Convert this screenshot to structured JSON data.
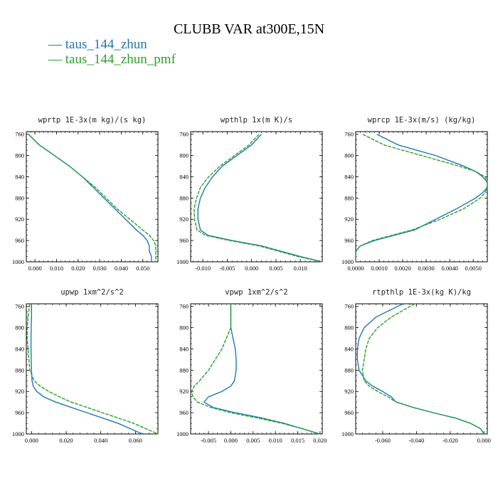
{
  "title": "CLUBB VAR at300E,15N",
  "legend": [
    {
      "label": "taus_144_zhun",
      "color": "#1f77b4",
      "dash": false
    },
    {
      "label": "taus_144_zhun_pmf",
      "color": "#2ca02c",
      "dash": true
    }
  ],
  "chart_data": [
    {
      "type": "line",
      "title": "wprtp  1E-3x(m kg)/(s kg)",
      "ylim": [
        1000,
        755
      ],
      "yticks": [
        760,
        800,
        840,
        880,
        920,
        960,
        1000
      ],
      "xlim": [
        -0.004,
        0.057
      ],
      "xticks": [
        0.0,
        0.01,
        0.02,
        0.03,
        0.04,
        0.05
      ],
      "xtick_labels": [
        "0.000",
        "0.010",
        "0.020",
        "0.030",
        "0.040",
        "0.050"
      ],
      "series": [
        {
          "name": "taus_144_zhun",
          "y": [
            760,
            780,
            800,
            820,
            840,
            860,
            880,
            900,
            920,
            940,
            950,
            960,
            970,
            980,
            990,
            1000
          ],
          "x": [
            -0.003,
            0.002,
            0.009,
            0.016,
            0.022,
            0.027,
            0.032,
            0.037,
            0.042,
            0.047,
            0.05,
            0.052,
            0.053,
            0.053,
            0.054,
            0.054
          ]
        },
        {
          "name": "taus_144_zhun_pmf",
          "y": [
            760,
            780,
            800,
            820,
            840,
            860,
            880,
            900,
            920,
            940,
            950,
            960,
            970,
            980,
            990,
            1000
          ],
          "x": [
            -0.003,
            0.002,
            0.009,
            0.016,
            0.022,
            0.028,
            0.033,
            0.038,
            0.044,
            0.05,
            0.053,
            0.055,
            0.056,
            0.056,
            0.056,
            0.056
          ]
        }
      ]
    },
    {
      "type": "line",
      "title": "wpthlp  1x(m K)/s",
      "ylim": [
        1000,
        755
      ],
      "yticks": [
        760,
        800,
        840,
        880,
        920,
        960,
        1000
      ],
      "xlim": [
        -0.0125,
        0.0145
      ],
      "xticks": [
        -0.01,
        -0.005,
        0.0,
        0.005,
        0.01
      ],
      "xtick_labels": [
        "-0.010",
        "-0.005",
        "0.000",
        "0.005",
        "0.010"
      ],
      "series": [
        {
          "name": "taus_144_zhun",
          "y": [
            760,
            780,
            800,
            820,
            840,
            860,
            880,
            900,
            920,
            940,
            950,
            960,
            970,
            980,
            990,
            1000
          ],
          "x": [
            0.002,
            0.0,
            -0.003,
            -0.006,
            -0.008,
            -0.0095,
            -0.0105,
            -0.011,
            -0.011,
            -0.0105,
            -0.009,
            -0.004,
            0.002,
            0.006,
            0.01,
            0.0145
          ]
        },
        {
          "name": "taus_144_zhun_pmf",
          "y": [
            760,
            780,
            800,
            820,
            840,
            860,
            880,
            900,
            920,
            940,
            950,
            960,
            970,
            980,
            990,
            1000
          ],
          "x": [
            0.0015,
            -0.0005,
            -0.0035,
            -0.0065,
            -0.0088,
            -0.0105,
            -0.0113,
            -0.0118,
            -0.0117,
            -0.0112,
            -0.0095,
            -0.0045,
            0.0015,
            0.0055,
            0.0095,
            0.0145
          ]
        }
      ]
    },
    {
      "type": "line",
      "title": "wprcp  1E-3x(m/s) (kg/kg)",
      "ylim": [
        1000,
        755
      ],
      "yticks": [
        760,
        800,
        840,
        880,
        920,
        960,
        1000
      ],
      "xlim": [
        0.0,
        0.0056
      ],
      "xticks": [
        0.0,
        0.001,
        0.002,
        0.003,
        0.004,
        0.005
      ],
      "xtick_labels": [
        "0.0000",
        "0.0010",
        "0.0020",
        "0.0030",
        "0.0040",
        "0.0050"
      ],
      "series": [
        {
          "name": "taus_144_zhun",
          "y": [
            760,
            780,
            800,
            820,
            830,
            840,
            850,
            860,
            870,
            880,
            900,
            920,
            940,
            960,
            970,
            980,
            1000
          ],
          "x": [
            0.0009,
            0.0018,
            0.0034,
            0.0046,
            0.0051,
            0.0054,
            0.0056,
            0.0056,
            0.0054,
            0.0051,
            0.0043,
            0.0034,
            0.0025,
            0.0008,
            0.0002,
            0.0,
            0.0
          ]
        },
        {
          "name": "taus_144_zhun_pmf",
          "y": [
            760,
            780,
            800,
            820,
            830,
            840,
            850,
            860,
            870,
            880,
            900,
            920,
            940,
            960,
            970,
            980,
            1000
          ],
          "x": [
            0.0003,
            0.0012,
            0.0028,
            0.0044,
            0.0051,
            0.0055,
            0.0056,
            0.0056,
            0.0055,
            0.0053,
            0.0046,
            0.0036,
            0.0024,
            0.0007,
            0.0002,
            0.0,
            0.0
          ]
        }
      ]
    },
    {
      "type": "line",
      "title": "upwp  1xm^2/s^2",
      "ylim": [
        1000,
        755
      ],
      "yticks": [
        760,
        800,
        840,
        880,
        920,
        960,
        1000
      ],
      "xlim": [
        -0.003,
        0.073
      ],
      "xticks": [
        0.0,
        0.02,
        0.04,
        0.06
      ],
      "xtick_labels": [
        "0.000",
        "0.020",
        "0.040",
        "0.060"
      ],
      "series": [
        {
          "name": "taus_144_zhun",
          "y": [
            755,
            780,
            800,
            820,
            840,
            860,
            880,
            900,
            910,
            920,
            930,
            940,
            950,
            960,
            970,
            980,
            990,
            1000
          ],
          "x": [
            0.0,
            0.0,
            -0.0002,
            -0.0003,
            -0.0003,
            -0.0002,
            0.0,
            0.0003,
            0.001,
            0.003,
            0.007,
            0.014,
            0.023,
            0.032,
            0.041,
            0.05,
            0.057,
            0.064
          ]
        },
        {
          "name": "taus_144_zhun_pmf",
          "y": [
            755,
            780,
            800,
            820,
            840,
            860,
            880,
            900,
            910,
            920,
            930,
            940,
            950,
            960,
            970,
            980,
            990,
            1000
          ],
          "x": [
            -0.001,
            -0.002,
            -0.0025,
            -0.0025,
            -0.002,
            -0.0015,
            -0.001,
            0.0015,
            0.005,
            0.01,
            0.016,
            0.023,
            0.032,
            0.041,
            0.05,
            0.059,
            0.066,
            0.073
          ]
        }
      ]
    },
    {
      "type": "line",
      "title": "vpwp  1xm^2/s^2",
      "ylim": [
        1000,
        755
      ],
      "yticks": [
        760,
        800,
        840,
        880,
        920,
        960,
        1000
      ],
      "xlim": [
        -0.009,
        0.0205
      ],
      "xticks": [
        -0.005,
        0.0,
        0.005,
        0.01,
        0.015,
        0.02
      ],
      "xtick_labels": [
        "-0.005",
        "0.000",
        "0.005",
        "0.010",
        "0.015",
        "0.020"
      ],
      "series": [
        {
          "name": "taus_144_zhun",
          "y": [
            755,
            780,
            800,
            820,
            840,
            860,
            880,
            900,
            910,
            920,
            930,
            940,
            950,
            960,
            970,
            980,
            990,
            1000
          ],
          "x": [
            0.0,
            0.0,
            0.0,
            0.0005,
            0.001,
            0.0012,
            0.0012,
            0.0008,
            0.0,
            -0.002,
            -0.005,
            -0.006,
            -0.004,
            0.001,
            0.007,
            0.012,
            0.016,
            0.02
          ]
        },
        {
          "name": "taus_144_zhun_pmf",
          "y": [
            755,
            780,
            800,
            820,
            840,
            860,
            880,
            900,
            910,
            920,
            930,
            940,
            950,
            960,
            970,
            980,
            990,
            1000
          ],
          "x": [
            0.0,
            0.0,
            0.0,
            -0.001,
            -0.002,
            -0.0035,
            -0.005,
            -0.007,
            -0.0082,
            -0.0088,
            -0.0085,
            -0.0075,
            -0.0045,
            0.0,
            0.006,
            0.0115,
            0.016,
            0.0198
          ]
        }
      ]
    },
    {
      "type": "line",
      "title": "rtpthlp  1E-3x(kg K)/kg",
      "ylim": [
        1000,
        755
      ],
      "yticks": [
        760,
        800,
        840,
        880,
        920,
        960,
        1000
      ],
      "xlim": [
        -0.076,
        0.002
      ],
      "xticks": [
        -0.06,
        -0.04,
        -0.02,
        0.0
      ],
      "xtick_labels": [
        "-0.060",
        "-0.040",
        "-0.020",
        "0.000"
      ],
      "series": [
        {
          "name": "taus_144_zhun",
          "y": [
            755,
            780,
            800,
            820,
            840,
            860,
            880,
            900,
            910,
            920,
            930,
            940,
            950,
            960,
            970,
            980,
            990,
            1000
          ],
          "x": [
            -0.048,
            -0.064,
            -0.071,
            -0.074,
            -0.075,
            -0.075,
            -0.074,
            -0.07,
            -0.066,
            -0.06,
            -0.055,
            -0.052,
            -0.042,
            -0.03,
            -0.017,
            -0.008,
            -0.002,
            0.0
          ]
        },
        {
          "name": "taus_144_zhun_pmf",
          "y": [
            755,
            780,
            800,
            820,
            840,
            860,
            880,
            900,
            910,
            920,
            930,
            940,
            950,
            960,
            970,
            980,
            990,
            1000
          ],
          "x": [
            -0.041,
            -0.055,
            -0.063,
            -0.068,
            -0.07,
            -0.071,
            -0.072,
            -0.071,
            -0.068,
            -0.063,
            -0.057,
            -0.052,
            -0.042,
            -0.03,
            -0.017,
            -0.008,
            -0.002,
            0.0
          ]
        }
      ]
    }
  ]
}
